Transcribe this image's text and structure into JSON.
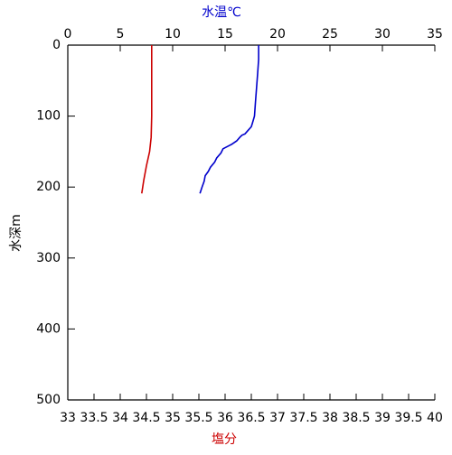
{
  "chart_data": {
    "type": "line",
    "x_label": "塩分",
    "x2_label": "水温℃",
    "y_label": "水深m",
    "xlim": [
      33,
      40
    ],
    "xticks": [
      33,
      33.5,
      34,
      34.5,
      35,
      35.5,
      36,
      36.5,
      37,
      37.5,
      38,
      38.5,
      39,
      39.5,
      40
    ],
    "x2lim": [
      0,
      35
    ],
    "x2ticks": [
      0,
      5,
      10,
      15,
      20,
      25,
      30,
      35
    ],
    "ylim": [
      0,
      500
    ],
    "yticks": [
      0,
      100,
      200,
      300,
      400,
      500
    ],
    "y_inverted": true,
    "x_label_color": "#cc0000",
    "x2_label_color": "#0000cc",
    "series": [
      {
        "color": "#0000cc",
        "axis": "x2",
        "y": [
          0,
          20,
          40,
          60,
          80,
          100,
          110,
          115,
          120,
          125,
          127,
          130,
          135,
          140,
          146,
          152,
          159,
          165,
          172,
          178,
          184,
          192,
          200,
          209
        ],
        "x": [
          18.2,
          18.2,
          18.1,
          18.0,
          17.9,
          17.8,
          17.6,
          17.5,
          17.2,
          16.9,
          16.6,
          16.4,
          16.1,
          15.6,
          14.8,
          14.6,
          14.2,
          14.0,
          13.6,
          13.4,
          13.1,
          13.0,
          12.8,
          12.6
        ]
      },
      {
        "color": "#cc0000",
        "axis": "x",
        "y": [
          0,
          50,
          100,
          130,
          150,
          170,
          190,
          209
        ],
        "x": [
          34.6,
          34.6,
          34.6,
          34.59,
          34.56,
          34.5,
          34.45,
          34.41
        ]
      }
    ]
  }
}
